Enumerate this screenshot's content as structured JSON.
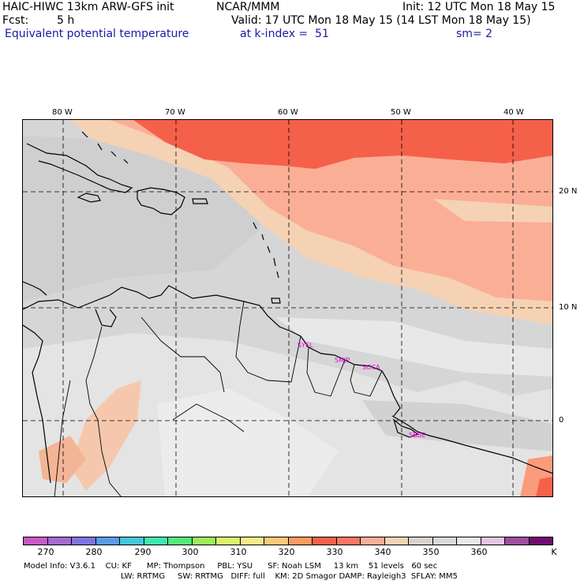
{
  "header": {
    "model_title": "HAIC-HIWC 13km ARW-GFS init",
    "org": "NCAR/MMM",
    "init": "Init: 12 UTC Mon 18 May 15",
    "fcst_label": "Fcst:",
    "fcst_value": "5 h",
    "valid": "Valid: 17 UTC Mon 18 May 15 (14 LST Mon 18 May 15)",
    "field": "Equivalent potential temperature",
    "level": "at k-index =  51",
    "smooth": "sm= 2"
  },
  "axes": {
    "lon_labels": [
      "80 W",
      "70 W",
      "60 W",
      "50 W",
      "40 W"
    ],
    "lat_labels": [
      "20 N",
      "10 N",
      "0"
    ]
  },
  "stations": [
    "SYEL",
    "SMJP",
    "SOCA",
    "SBBE"
  ],
  "colorbar": {
    "colors": [
      "#c859c8",
      "#a46bd0",
      "#7e76e0",
      "#5a9be6",
      "#42c8d8",
      "#3fe6b0",
      "#55e87a",
      "#9aef5a",
      "#dcf26a",
      "#f7e88a",
      "#fdc87a",
      "#fb9b5c",
      "#f5604a",
      "#fb7464",
      "#fbae96",
      "#f5d2b4",
      "#dad2cf",
      "#d9d9d9",
      "#e8e8e8",
      "#e6c4e6",
      "#9e4ea0",
      "#6f0c72"
    ],
    "labels": [
      "270",
      "280",
      "290",
      "300",
      "310",
      "320",
      "330",
      "340",
      "350",
      "360"
    ],
    "unit": "K"
  },
  "footer": {
    "line1": "Model Info: V3.6.1    CU: KF      MP: Thompson     PBL: YSU      SF: Noah LSM     13 km    51 levels   60 sec",
    "line2": "LW: RRTMG     SW: RRTMG   DIFF: full    KM: 2D Smagor DAMP: Rayleigh3  SFLAY: MM5"
  }
}
